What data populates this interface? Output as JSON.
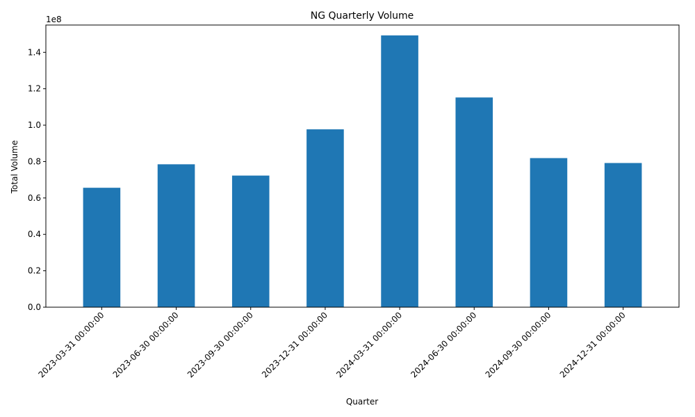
{
  "chart_data": {
    "type": "bar",
    "title": "NG Quarterly Volume",
    "xlabel": "Quarter",
    "ylabel": "Total Volume",
    "y_offset_label": "1e8",
    "categories": [
      "2023-03-31 00:00:00",
      "2023-06-30 00:00:00",
      "2023-09-30 00:00:00",
      "2023-12-31 00:00:00",
      "2024-03-31 00:00:00",
      "2024-06-30 00:00:00",
      "2024-09-30 00:00:00",
      "2024-12-31 00:00:00"
    ],
    "values": [
      65600000,
      78500000,
      72300000,
      97700000,
      149300000,
      115200000,
      81900000,
      79200000
    ],
    "ylim": [
      0,
      155000000
    ],
    "y_ticks": [
      0,
      20000000,
      40000000,
      60000000,
      80000000,
      100000000,
      120000000,
      140000000
    ],
    "y_tick_labels": [
      "0.0",
      "0.2",
      "0.4",
      "0.6",
      "0.8",
      "1.0",
      "1.2",
      "1.4"
    ],
    "bar_color": "#1f77b4",
    "grid": false,
    "legend": "none"
  }
}
